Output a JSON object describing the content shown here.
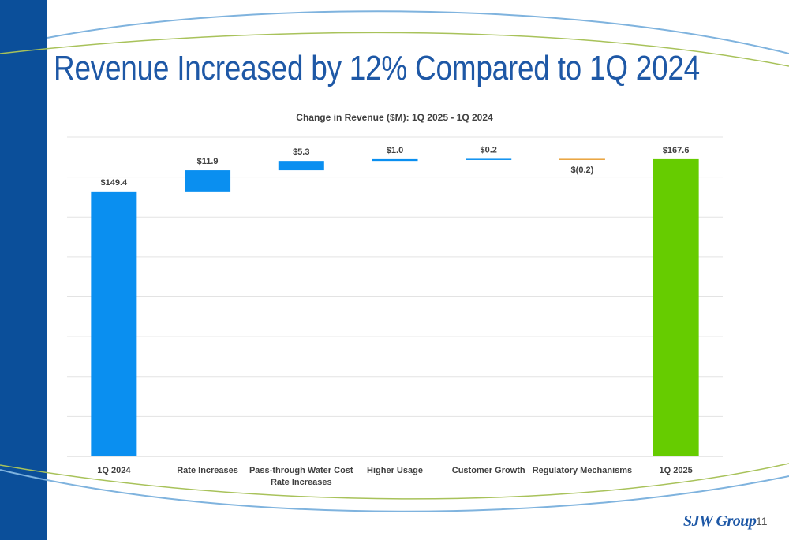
{
  "slide": {
    "title": "Revenue Increased by 12% Compared to 1Q 2024",
    "logo_text": "SJW Group",
    "page_number": "11"
  },
  "colors": {
    "sidebar": "#0b4f9a",
    "title": "#1e58a6",
    "increase": "#0a8ff0",
    "decrease": "#e9a23b",
    "total_start": "#0a8ff0",
    "total_end": "#66cc00",
    "swoosh_blue": "#7fb3de",
    "swoosh_green": "#a8c25a"
  },
  "chart_data": {
    "type": "bar",
    "subtype": "waterfall",
    "title": "Change in Revenue ($M): 1Q 2025 - 1Q 2024",
    "categories": [
      "1Q 2024",
      "Rate Increases",
      "Pass-through Water Cost Rate Increases",
      "Higher Usage",
      "Customer Growth",
      "Regulatory Mechanisms",
      "1Q 2025"
    ],
    "values": [
      149.4,
      11.9,
      5.3,
      1.0,
      0.2,
      -0.2,
      167.6
    ],
    "labels": [
      "$149.4",
      "$11.9",
      "$5.3",
      "$1.0",
      "$0.2",
      "$(0.2)",
      "$167.6"
    ],
    "kinds": [
      "total",
      "increase",
      "increase",
      "increase",
      "increase",
      "decrease",
      "total"
    ],
    "ylim": [
      0,
      180
    ],
    "grid": true,
    "xlabel": "",
    "ylabel": ""
  }
}
